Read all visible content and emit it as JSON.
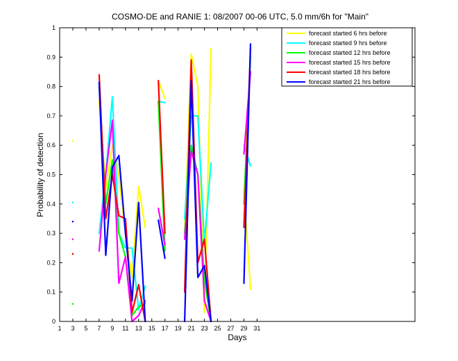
{
  "chart_data": {
    "type": "line",
    "title": "COSMO-DE and RANIE 1: 08/2007 00-06 UTC, 5.0 mm/6h for \"Main\"",
    "xlabel": "Days",
    "ylabel": "Probability of detection",
    "xlim": [
      1,
      55
    ],
    "ylim": [
      0,
      1
    ],
    "xticks": [
      1,
      3,
      5,
      7,
      9,
      11,
      13,
      15,
      17,
      19,
      21,
      23,
      25,
      27,
      29,
      31
    ],
    "yticks": [
      0,
      0.1,
      0.2,
      0.3,
      0.4,
      0.5,
      0.6,
      0.7,
      0.8,
      0.9,
      1
    ],
    "grid": false,
    "legend_position": "top-right",
    "series": [
      {
        "name": "forecast started 6 hrs before",
        "color": "#ffff00",
        "points": [
          [
            3,
            0.615
          ],
          null,
          [
            7,
            0.75
          ],
          [
            8,
            0.45
          ],
          [
            9,
            0.6
          ],
          [
            10,
            0.5
          ],
          [
            11,
            0.3
          ],
          [
            12,
            0.15
          ],
          [
            13,
            0.46
          ],
          [
            14,
            0.32
          ],
          null,
          [
            16,
            0.82
          ],
          [
            17,
            0.76
          ],
          null,
          [
            20,
            0.3
          ],
          [
            21,
            0.91
          ],
          [
            22,
            0.8
          ],
          [
            23,
            0.03
          ],
          [
            24,
            0.93
          ],
          null,
          [
            29,
            0.45
          ],
          [
            30,
            0.11
          ]
        ]
      },
      {
        "name": "forecast started 9 hrs before",
        "color": "#00ffff",
        "points": [
          [
            3,
            0.405
          ],
          null,
          [
            7,
            0.3
          ],
          [
            8,
            0.5
          ],
          [
            9,
            0.765
          ],
          [
            10,
            0.3
          ],
          [
            11,
            0.25
          ],
          [
            12,
            0.25
          ],
          [
            13,
            0.04
          ],
          [
            14,
            0.12
          ],
          null,
          [
            16,
            0.75
          ],
          [
            17,
            0.745
          ],
          null,
          [
            20,
            0.35
          ],
          [
            21,
            0.7
          ],
          [
            22,
            0.7
          ],
          [
            23,
            0.27
          ],
          [
            24,
            0.54
          ],
          null,
          [
            29,
            0.6
          ],
          [
            30,
            0.53
          ]
        ]
      },
      {
        "name": "forecast started 12 hrs before",
        "color": "#00ff00",
        "points": [
          [
            3,
            0.06
          ],
          null,
          [
            7,
            0.8
          ],
          [
            8,
            0.4
          ],
          [
            9,
            0.55
          ],
          [
            10,
            0.3
          ],
          [
            11,
            0.22
          ],
          [
            12,
            0.02
          ],
          [
            13,
            0.05
          ],
          [
            14,
            0.06
          ],
          null,
          [
            16,
            0.75
          ],
          [
            17,
            0.24
          ],
          null,
          [
            20,
            0.3
          ],
          [
            21,
            0.6
          ],
          [
            22,
            0.5
          ],
          [
            23,
            0.14
          ],
          [
            24,
            0.0
          ],
          null,
          [
            29,
            0.4
          ],
          [
            30,
            0.9
          ]
        ]
      },
      {
        "name": "forecast started 15 hrs before",
        "color": "#ff00ff",
        "points": [
          [
            3,
            0.28
          ],
          null,
          [
            7,
            0.24
          ],
          [
            8,
            0.5
          ],
          [
            9,
            0.685
          ],
          [
            10,
            0.13
          ],
          [
            11,
            0.22
          ],
          [
            12,
            0.0
          ],
          [
            13,
            0.02
          ],
          [
            14,
            0.07
          ],
          null,
          [
            16,
            0.385
          ],
          [
            17,
            0.26
          ],
          null,
          [
            20,
            0.28
          ],
          [
            21,
            0.58
          ],
          [
            22,
            0.5
          ],
          [
            23,
            0.07
          ],
          [
            24,
            0.0
          ],
          null,
          [
            29,
            0.57
          ],
          [
            30,
            0.85
          ]
        ]
      },
      {
        "name": "forecast started 18 hrs before",
        "color": "#ff0000",
        "points": [
          [
            3,
            0.23
          ],
          null,
          [
            7,
            0.84
          ],
          [
            8,
            0.35
          ],
          [
            9,
            0.5
          ],
          [
            10,
            0.36
          ],
          [
            11,
            0.35
          ],
          [
            12,
            0.03
          ],
          [
            13,
            0.125
          ],
          [
            14,
            0.0
          ],
          null,
          [
            16,
            0.82
          ],
          [
            17,
            0.3
          ],
          null,
          [
            20,
            0.1
          ],
          [
            21,
            0.89
          ],
          [
            22,
            0.2
          ],
          [
            23,
            0.28
          ],
          [
            24,
            0.0
          ],
          null,
          [
            29,
            0.32
          ],
          [
            30,
            0.93
          ]
        ]
      },
      {
        "name": "forecast started 21 hrs before",
        "color": "#0000ff",
        "points": [
          [
            3,
            0.34
          ],
          null,
          [
            7,
            0.815
          ],
          [
            8,
            0.225
          ],
          [
            9,
            0.525
          ],
          [
            10,
            0.565
          ],
          [
            11,
            0.3
          ],
          [
            12,
            0.07
          ],
          [
            13,
            0.405
          ],
          [
            14,
            0.0
          ],
          null,
          [
            16,
            0.345
          ],
          [
            17,
            0.215
          ],
          null,
          [
            20,
            0.0
          ],
          [
            21,
            0.82
          ],
          [
            22,
            0.15
          ],
          [
            23,
            0.19
          ],
          [
            24,
            0.0
          ],
          null,
          [
            29,
            0.13
          ],
          [
            30,
            0.945
          ]
        ]
      }
    ]
  }
}
